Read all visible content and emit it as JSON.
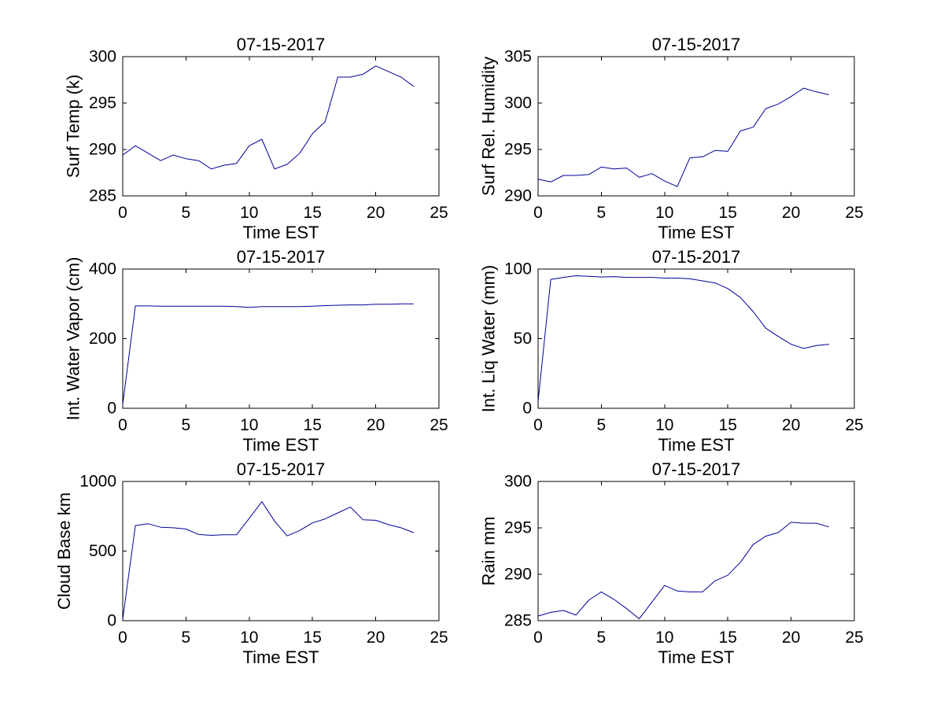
{
  "figure": {
    "background": "#ffffff",
    "line_color": "#000099",
    "axis_color": "#000000"
  },
  "chart_data": [
    {
      "type": "line",
      "title": "07-15-2017",
      "xlabel": "Time EST",
      "ylabel": "Surf Temp (k)",
      "legend_position": "none",
      "grid": false,
      "xlim": [
        0,
        25
      ],
      "ylim": [
        285,
        300
      ],
      "xticks": [
        0,
        5,
        10,
        15,
        20,
        25
      ],
      "yticks": [
        285,
        290,
        295,
        300
      ],
      "x": [
        0,
        1,
        2,
        3,
        4,
        5,
        6,
        7,
        8,
        9,
        10,
        11,
        12,
        13,
        14,
        15,
        16,
        17,
        18,
        19,
        20,
        21,
        22,
        23
      ],
      "y": [
        289.4,
        290.4,
        289.6,
        288.8,
        289.4,
        289.0,
        288.8,
        287.9,
        288.3,
        288.5,
        290.4,
        291.1,
        287.9,
        288.4,
        289.6,
        291.7,
        293.0,
        297.8,
        297.8,
        298.1,
        299.0,
        298.4,
        297.8,
        296.8
      ]
    },
    {
      "type": "line",
      "title": "07-15-2017",
      "xlabel": "Time EST",
      "ylabel": "Surf Rel. Humidity",
      "legend_position": "none",
      "grid": false,
      "xlim": [
        0,
        25
      ],
      "ylim": [
        290,
        305
      ],
      "xticks": [
        0,
        5,
        10,
        15,
        20,
        25
      ],
      "yticks": [
        290,
        295,
        300,
        305
      ],
      "x": [
        0,
        1,
        2,
        3,
        4,
        5,
        6,
        7,
        8,
        9,
        10,
        11,
        12,
        13,
        14,
        15,
        16,
        17,
        18,
        19,
        20,
        21,
        22,
        23
      ],
      "y": [
        291.8,
        291.5,
        292.2,
        292.2,
        292.3,
        293.1,
        292.9,
        293.0,
        292.0,
        292.4,
        291.6,
        291.0,
        294.1,
        294.2,
        294.9,
        294.8,
        297.0,
        297.4,
        299.4,
        299.9,
        300.7,
        301.6,
        301.2,
        300.9
      ]
    },
    {
      "type": "line",
      "title": "07-15-2017",
      "xlabel": "Time EST",
      "ylabel": "Int. Water Vapor (cm)",
      "legend_position": "none",
      "grid": false,
      "xlim": [
        0,
        25
      ],
      "ylim": [
        0,
        400
      ],
      "xticks": [
        0,
        5,
        10,
        15,
        20,
        25
      ],
      "yticks": [
        0,
        200,
        400
      ],
      "x": [
        0,
        1,
        2,
        3,
        4,
        5,
        6,
        7,
        8,
        9,
        10,
        11,
        12,
        13,
        14,
        15,
        16,
        17,
        18,
        19,
        20,
        21,
        22,
        23
      ],
      "y": [
        11,
        294,
        294,
        293,
        293,
        293,
        293,
        293,
        293,
        292,
        290,
        292,
        292,
        292,
        292,
        293,
        295,
        296,
        297,
        297,
        299,
        299,
        300,
        300
      ]
    },
    {
      "type": "line",
      "title": "07-15-2017",
      "xlabel": "Time EST",
      "ylabel": "Int. Liq Water (mm)",
      "legend_position": "none",
      "grid": false,
      "xlim": [
        0,
        25
      ],
      "ylim": [
        0,
        100
      ],
      "xticks": [
        0,
        5,
        10,
        15,
        20,
        25
      ],
      "yticks": [
        0,
        50,
        100
      ],
      "x": [
        0,
        1,
        2,
        3,
        4,
        5,
        6,
        7,
        8,
        9,
        10,
        11,
        12,
        13,
        14,
        15,
        16,
        17,
        18,
        19,
        20,
        21,
        22,
        23
      ],
      "y": [
        5,
        92.5,
        94,
        95.2,
        94.8,
        94.3,
        94.6,
        94,
        94,
        94,
        93.5,
        93.5,
        93,
        91.5,
        90,
        86,
        79.5,
        69.5,
        57.5,
        51.5,
        46,
        43,
        45,
        46
      ]
    },
    {
      "type": "line",
      "title": "07-15-2017",
      "xlabel": "Time EST",
      "ylabel": "Cloud Base km",
      "legend_position": "none",
      "grid": false,
      "xlim": [
        0,
        25
      ],
      "ylim": [
        0,
        1000
      ],
      "xticks": [
        0,
        5,
        10,
        15,
        20,
        25
      ],
      "yticks": [
        0,
        500,
        1000
      ],
      "x": [
        0,
        1,
        2,
        3,
        4,
        5,
        6,
        7,
        8,
        9,
        10,
        11,
        12,
        13,
        14,
        15,
        16,
        17,
        18,
        19,
        20,
        21,
        22,
        23
      ],
      "y": [
        10,
        683,
        696,
        671,
        667,
        658,
        619,
        613,
        617,
        617,
        735,
        855,
        716,
        609,
        648,
        702,
        731,
        774,
        816,
        725,
        721,
        690,
        667,
        632
      ]
    },
    {
      "type": "line",
      "title": "07-15-2017",
      "xlabel": "Time EST",
      "ylabel": "Rain mm",
      "legend_position": "none",
      "grid": false,
      "xlim": [
        0,
        25
      ],
      "ylim": [
        285,
        300
      ],
      "xticks": [
        0,
        5,
        10,
        15,
        20,
        25
      ],
      "yticks": [
        285,
        290,
        295,
        300
      ],
      "x": [
        0,
        1,
        2,
        3,
        4,
        5,
        6,
        7,
        8,
        9,
        10,
        11,
        12,
        13,
        14,
        15,
        16,
        17,
        18,
        19,
        20,
        21,
        22,
        23
      ],
      "y": [
        285.5,
        285.9,
        286.1,
        285.6,
        287.2,
        288.1,
        287.3,
        286.3,
        285.2,
        287.0,
        288.8,
        288.2,
        288.1,
        288.1,
        289.3,
        289.9,
        291.3,
        293.2,
        294.1,
        294.5,
        295.6,
        295.5,
        295.5,
        295.1
      ]
    }
  ]
}
